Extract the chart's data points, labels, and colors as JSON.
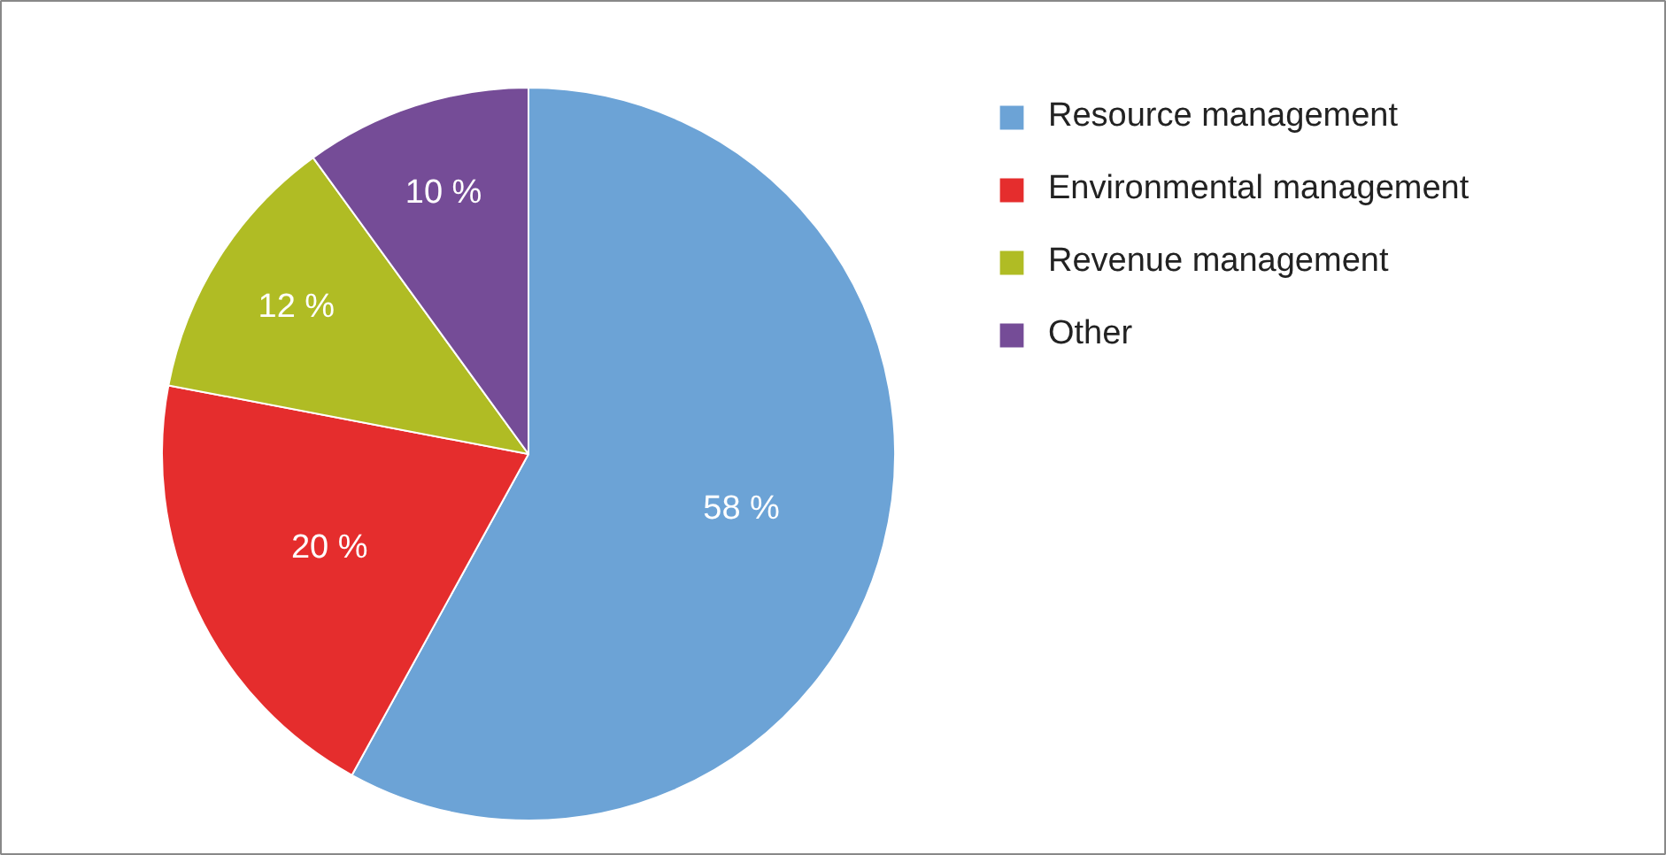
{
  "chart_data": {
    "type": "pie",
    "categories": [
      "Resource management",
      "Environmental management",
      "Revenue management",
      "Other"
    ],
    "values": [
      58,
      20,
      12,
      10
    ],
    "colors": [
      "#6ca3d6",
      "#e52d2d",
      "#b0bc24",
      "#754c97"
    ],
    "value_labels": [
      "58 %",
      "20 %",
      "12 %",
      "10 %"
    ],
    "legend": "right"
  }
}
